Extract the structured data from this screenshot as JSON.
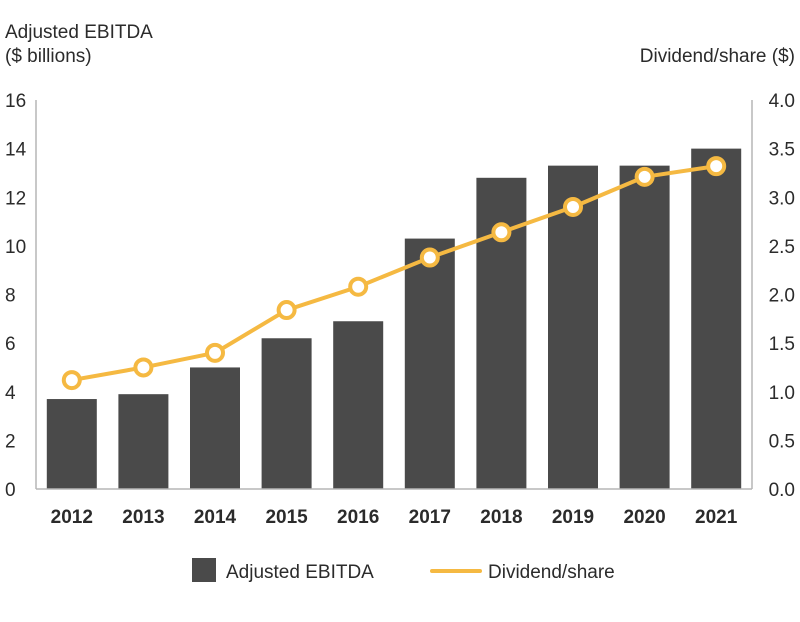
{
  "chart_data": {
    "type": "bar+line",
    "categories": [
      "2012",
      "2013",
      "2014",
      "2015",
      "2016",
      "2017",
      "2018",
      "2019",
      "2020",
      "2021"
    ],
    "series": [
      {
        "name": "Adjusted EBITDA",
        "type": "bar",
        "axis": "left",
        "values": [
          3.7,
          3.9,
          5.0,
          6.2,
          6.9,
          10.3,
          12.8,
          13.3,
          13.3,
          14.0
        ]
      },
      {
        "name": "Dividend/share",
        "type": "line",
        "axis": "right",
        "values": [
          1.12,
          1.25,
          1.4,
          1.84,
          2.08,
          2.38,
          2.64,
          2.9,
          3.21,
          3.32
        ]
      }
    ],
    "left_axis": {
      "title_line1": "Adjusted EBITDA",
      "title_line2": "($ billions)",
      "ylim": [
        0,
        16
      ],
      "ticks": [
        "0",
        "2",
        "4",
        "6",
        "8",
        "10",
        "12",
        "14",
        "16"
      ]
    },
    "right_axis": {
      "title": "Dividend/share ($)",
      "ylim": [
        0,
        4
      ],
      "ticks": [
        "0.0",
        "0.5",
        "1.0",
        "1.5",
        "2.0",
        "2.5",
        "3.0",
        "3.5",
        "4.0"
      ]
    },
    "legend": {
      "placement": "bottom-center",
      "bar_label": "Adjusted EBITDA",
      "line_label": "Dividend/share"
    },
    "grid": false,
    "colors": {
      "bar": "#4a4a4a",
      "line": "#f5b942",
      "axis": "#b5b5b5",
      "text": "#2b2b2b"
    }
  }
}
